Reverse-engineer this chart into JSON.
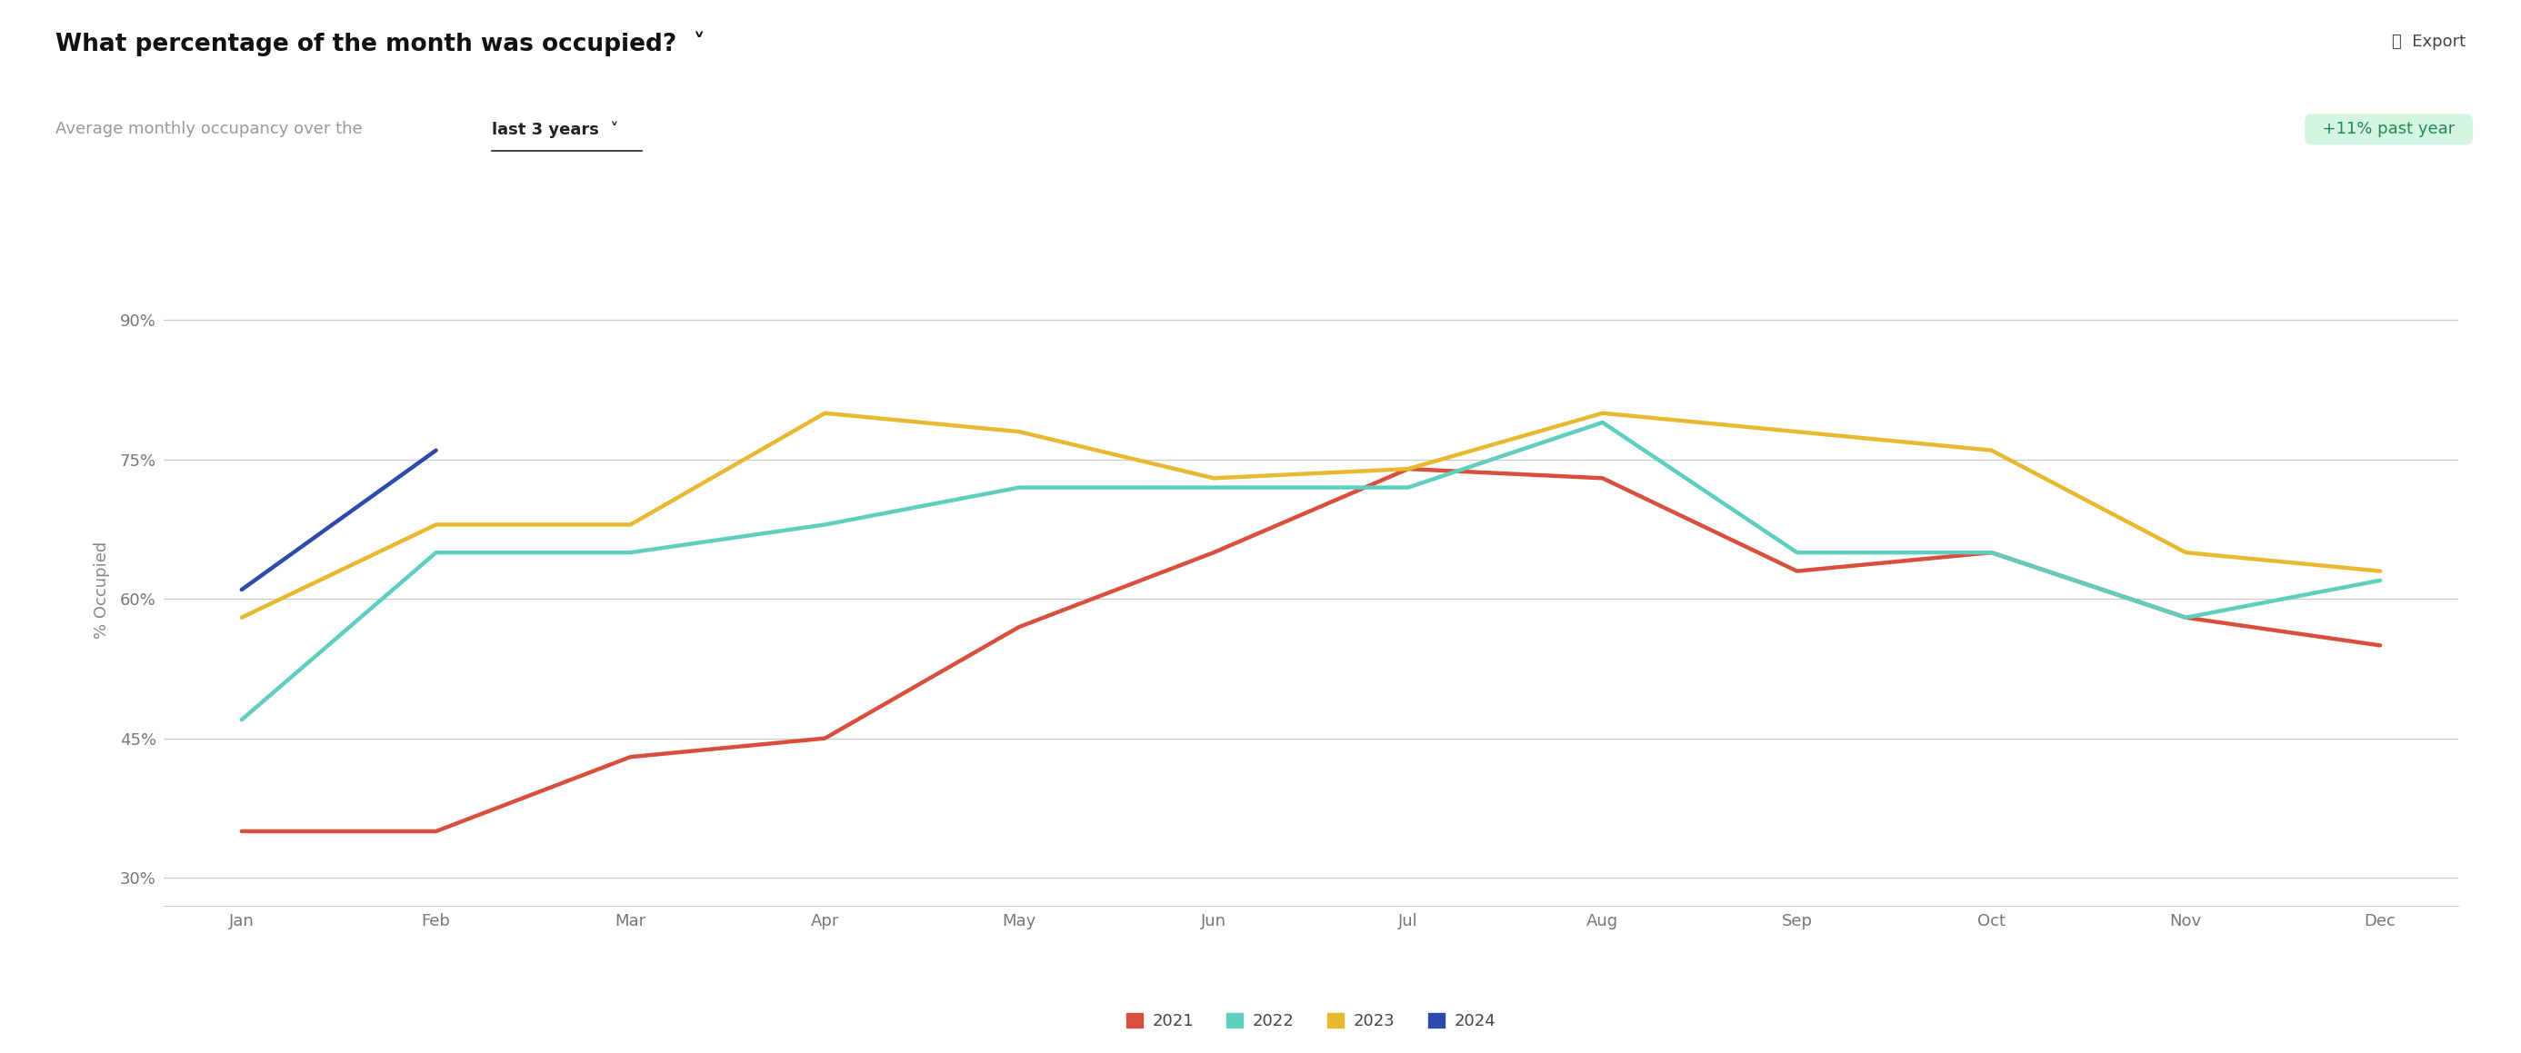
{
  "title": "What percentage of the month was occupied?",
  "subtitle_plain": "Average monthly occupancy over the ",
  "subtitle_link": "last 3 years",
  "badge_text": "+11% past year",
  "export_text": "Export",
  "ylabel": "% Occupied",
  "months": [
    "Jan",
    "Feb",
    "Mar",
    "Apr",
    "May",
    "Jun",
    "Jul",
    "Aug",
    "Sep",
    "Oct",
    "Nov",
    "Dec"
  ],
  "series": {
    "2021": [
      35,
      35,
      43,
      45,
      57,
      65,
      74,
      73,
      63,
      65,
      58,
      55
    ],
    "2022": [
      47,
      65,
      65,
      68,
      72,
      72,
      72,
      79,
      65,
      65,
      58,
      62
    ],
    "2023": [
      58,
      68,
      68,
      80,
      78,
      73,
      74,
      80,
      78,
      76,
      65,
      63
    ],
    "2024": [
      61,
      76
    ]
  },
  "colors": {
    "2021": "#d94f3d",
    "2022": "#5ecfbe",
    "2023": "#e8b830",
    "2024": "#2d4aad"
  },
  "ylim": [
    27,
    95
  ],
  "yticks": [
    30,
    45,
    60,
    75,
    90
  ],
  "ytick_labels": [
    "30%",
    "45%",
    "60%",
    "75%",
    "90%"
  ],
  "background_color": "#ffffff",
  "grid_color": "#cccccc",
  "title_fontsize": 19,
  "subtitle_fontsize": 13,
  "axis_label_fontsize": 13,
  "tick_fontsize": 13,
  "legend_fontsize": 13,
  "line_width": 3.2,
  "badge_bg": "#d4f5e2",
  "badge_text_color": "#1e8a4e"
}
